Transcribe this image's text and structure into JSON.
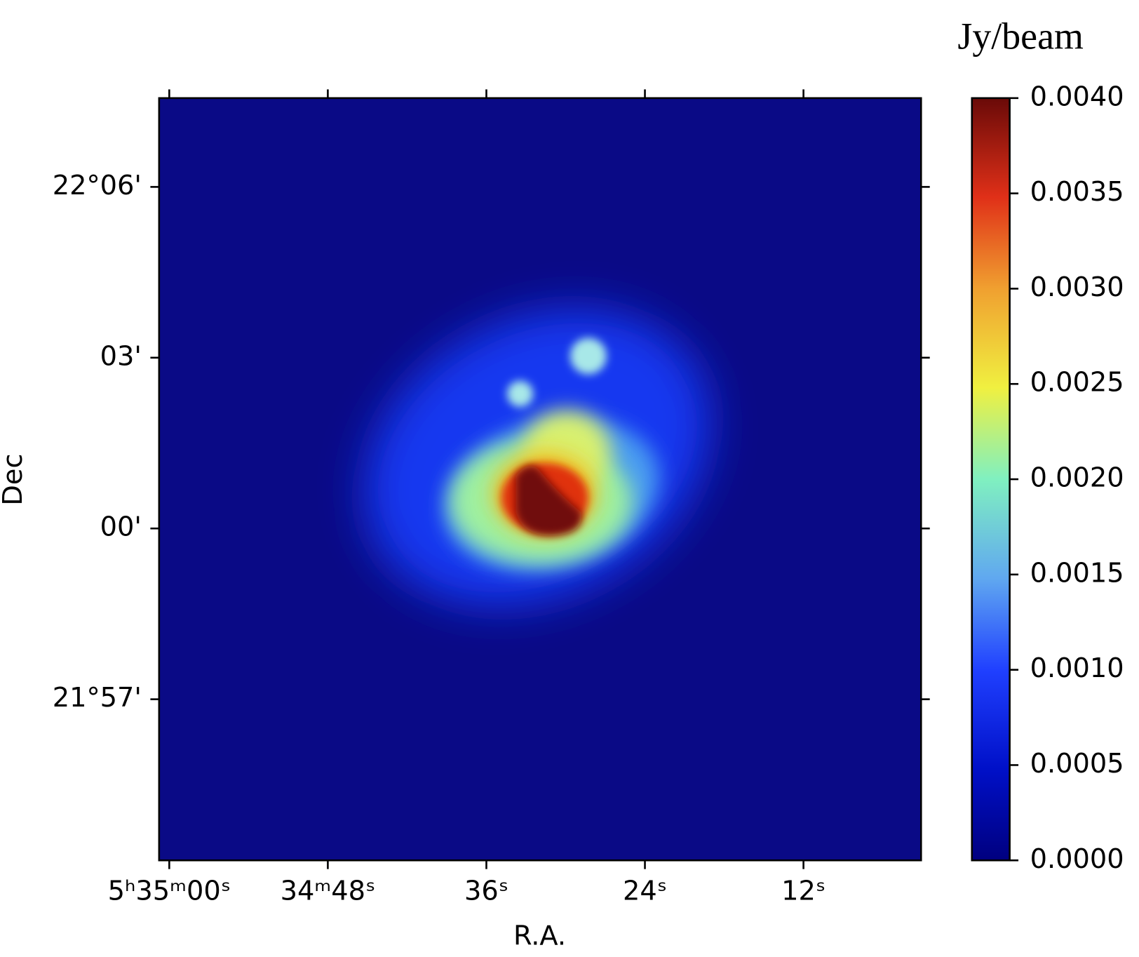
{
  "chart_data": {
    "type": "image",
    "xlabel": "R.A.",
    "ylabel": "Dec",
    "colorbar_label": "Jy/beam",
    "xlim": [
      60.77,
      3.1
    ],
    "xticks": [
      {
        "value": 60,
        "label": "5ʰ35ᵐ00ˢ"
      },
      {
        "value": 48,
        "label": "34ᵐ48ˢ"
      },
      {
        "value": 36,
        "label": "36ˢ"
      },
      {
        "value": 24,
        "label": "24ˢ"
      },
      {
        "value": 12,
        "label": "12ˢ"
      }
    ],
    "ylim": [
      -5.83,
      7.56
    ],
    "yticks": [
      {
        "value": 6,
        "label": "22°06'"
      },
      {
        "value": 3,
        "label": "03'"
      },
      {
        "value": 0,
        "label": "00'"
      },
      {
        "value": -3,
        "label": "21°57'"
      }
    ],
    "colormap": "jet",
    "clim": [
      0,
      0.004
    ],
    "cticks": [
      {
        "value": 0,
        "label": "0.0000"
      },
      {
        "value": 0.0005,
        "label": "0.0005"
      },
      {
        "value": 0.001,
        "label": "0.0010"
      },
      {
        "value": 0.0015,
        "label": "0.0015"
      },
      {
        "value": 0.002,
        "label": "0.0020"
      },
      {
        "value": 0.0025,
        "label": "0.0025"
      },
      {
        "value": 0.003,
        "label": "0.0030"
      },
      {
        "value": 0.0035,
        "label": "0.0035"
      },
      {
        "value": 0.004,
        "label": "0.0040"
      }
    ]
  }
}
